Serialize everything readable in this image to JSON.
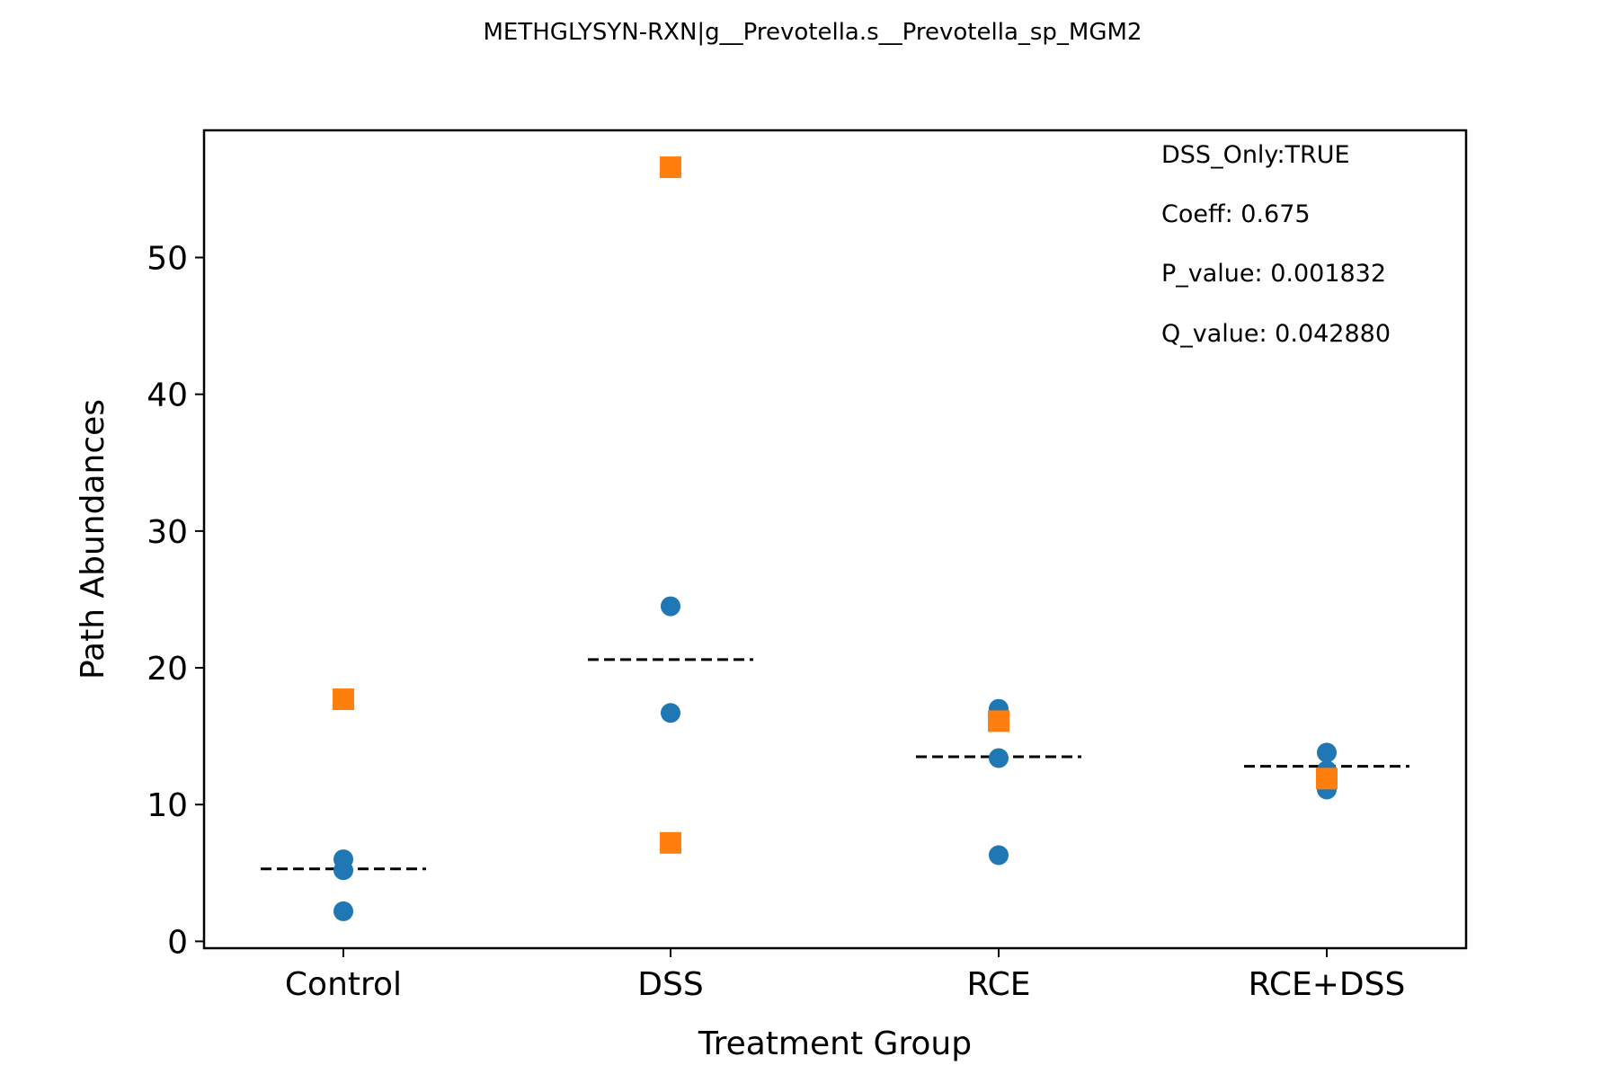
{
  "chart_data": {
    "type": "scatter",
    "title": "METHGLYSYN-RXN|g__Prevotella.s__Prevotella_sp_MGM2",
    "xlabel": "Treatment Group",
    "ylabel": "Path Abundances",
    "categories": [
      "Control",
      "DSS",
      "RCE",
      "RCE+DSS"
    ],
    "ylim": [
      -0.5,
      59.3
    ],
    "yticks": [
      0,
      10,
      20,
      30,
      40,
      50
    ],
    "grid": false,
    "legend": "none",
    "colors": {
      "circle": "#1f77b4",
      "square": "#ff7f0e",
      "median_line": "#000000"
    },
    "series": [
      {
        "marker": "circle",
        "points": [
          {
            "category": "Control",
            "y": 6.0
          },
          {
            "category": "Control",
            "y": 5.2
          },
          {
            "category": "Control",
            "y": 2.2
          },
          {
            "category": "DSS",
            "y": 24.5
          },
          {
            "category": "DSS",
            "y": 16.7
          },
          {
            "category": "RCE",
            "y": 17.0
          },
          {
            "category": "RCE",
            "y": 13.4
          },
          {
            "category": "RCE",
            "y": 6.3
          },
          {
            "category": "RCE+DSS",
            "y": 13.8
          },
          {
            "category": "RCE+DSS",
            "y": 12.5
          },
          {
            "category": "RCE+DSS",
            "y": 11.1
          }
        ]
      },
      {
        "marker": "square",
        "points": [
          {
            "category": "Control",
            "y": 17.7
          },
          {
            "category": "DSS",
            "y": 56.6
          },
          {
            "category": "DSS",
            "y": 7.2
          },
          {
            "category": "RCE",
            "y": 16.1
          },
          {
            "category": "RCE+DSS",
            "y": 11.9
          }
        ]
      }
    ],
    "group_lines": [
      {
        "category": "Control",
        "y": 5.3
      },
      {
        "category": "DSS",
        "y": 20.6
      },
      {
        "category": "RCE",
        "y": 13.5
      },
      {
        "category": "RCE+DSS",
        "y": 12.8
      }
    ],
    "annotations": [
      "DSS_Only:TRUE",
      "Coeff: 0.675",
      "P_value: 0.001832",
      "Q_value: 0.042880"
    ]
  }
}
